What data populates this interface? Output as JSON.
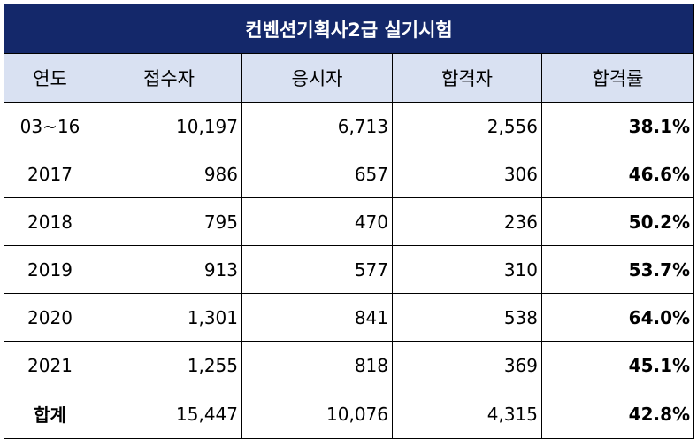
{
  "title": "컨벤션기획사2급 실기시험",
  "headers": [
    "연도",
    "접수자",
    "응시자",
    "합격자",
    "합격률"
  ],
  "rows": [
    {
      "year": "03~16",
      "applicants": "10,197",
      "examinees": "6,713",
      "passers": "2,556",
      "rate": "38.1%"
    },
    {
      "year": "2017",
      "applicants": "986",
      "examinees": "657",
      "passers": "306",
      "rate": "46.6%"
    },
    {
      "year": "2018",
      "applicants": "795",
      "examinees": "470",
      "passers": "236",
      "rate": "50.2%"
    },
    {
      "year": "2019",
      "applicants": "913",
      "examinees": "577",
      "passers": "310",
      "rate": "53.7%"
    },
    {
      "year": "2020",
      "applicants": "1,301",
      "examinees": "841",
      "passers": "538",
      "rate": "64.0%"
    },
    {
      "year": "2021",
      "applicants": "1,255",
      "examinees": "818",
      "passers": "369",
      "rate": "45.1%"
    }
  ],
  "total": {
    "label": "합계",
    "applicants": "15,447",
    "examinees": "10,076",
    "passers": "4,315",
    "rate": "42.8%"
  },
  "colors": {
    "title_bg": "#14286a",
    "header_bg": "#d9e1f2"
  }
}
